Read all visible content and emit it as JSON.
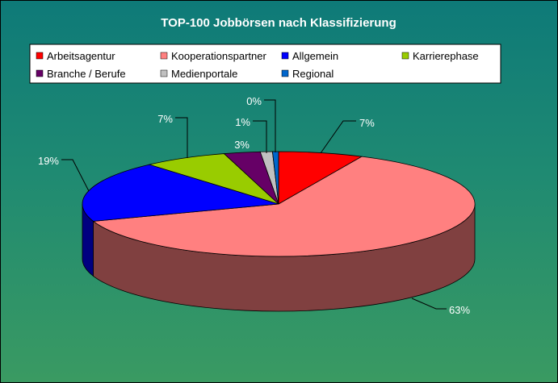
{
  "chart_data": {
    "type": "pie",
    "title": "TOP-100 Jobbörsen nach Klassifizierung",
    "legend_position": "top",
    "slices": [
      {
        "name": "Arbeitsagentur",
        "value": 7,
        "label": "7%",
        "color": "#ff0000",
        "side_color": "#800000"
      },
      {
        "name": "Kooperationspartner",
        "value": 63,
        "label": "63%",
        "color": "#ff8080",
        "side_color": "#804040"
      },
      {
        "name": "Allgemein",
        "value": 19,
        "label": "19%",
        "color": "#0000ff",
        "side_color": "#000080"
      },
      {
        "name": "Karrierephase",
        "value": 7,
        "label": "7%",
        "color": "#99cc00",
        "side_color": "#4d6600"
      },
      {
        "name": "Branche / Berufe",
        "value": 3,
        "label": "3%",
        "color": "#660066",
        "side_color": "#330033"
      },
      {
        "name": "Medienportale",
        "value": 1,
        "label": "1%",
        "color": "#c0c0c0",
        "side_color": "#606060"
      },
      {
        "name": "Regional",
        "value": 0.5,
        "label": "0%",
        "color": "#0066cc",
        "side_color": "#003366"
      }
    ]
  }
}
